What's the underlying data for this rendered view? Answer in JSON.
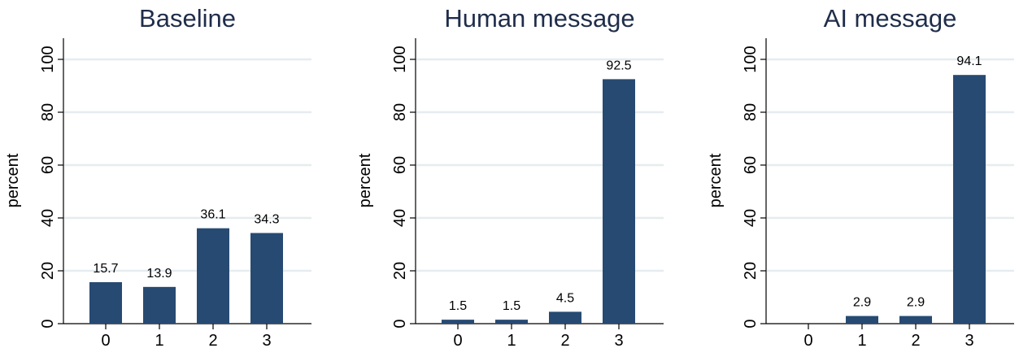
{
  "colors": {
    "bar": "#274A72",
    "grid": "#E6ECEF",
    "axis": "#000000",
    "title": "#1F2D4A",
    "text": "#000000"
  },
  "chart_data": [
    {
      "type": "bar",
      "title": "Baseline",
      "ylabel": "percent",
      "xlabel": "",
      "categories": [
        "0",
        "1",
        "2",
        "3"
      ],
      "values": [
        15.7,
        13.9,
        36.1,
        34.3
      ],
      "data_labels": [
        "15.7",
        "13.9",
        "36.1",
        "34.3"
      ],
      "ylim": [
        0,
        100
      ],
      "yticks": [
        0,
        20,
        40,
        60,
        80,
        100
      ],
      "ytick_labels": [
        "0",
        "20",
        "40",
        "60",
        "80",
        "100"
      ],
      "grid": true,
      "legend": "none"
    },
    {
      "type": "bar",
      "title": "Human message",
      "ylabel": "percent",
      "xlabel": "",
      "categories": [
        "0",
        "1",
        "2",
        "3"
      ],
      "values": [
        1.5,
        1.5,
        4.5,
        92.5
      ],
      "data_labels": [
        "1.5",
        "1.5",
        "4.5",
        "92.5"
      ],
      "ylim": [
        0,
        100
      ],
      "yticks": [
        0,
        20,
        40,
        60,
        80,
        100
      ],
      "ytick_labels": [
        "0",
        "20",
        "40",
        "60",
        "80",
        "100"
      ],
      "grid": true,
      "legend": "none"
    },
    {
      "type": "bar",
      "title": "AI message",
      "ylabel": "percent",
      "xlabel": "",
      "categories": [
        "0",
        "1",
        "2",
        "3"
      ],
      "values": [
        0,
        2.9,
        2.9,
        94.1
      ],
      "data_labels": [
        "",
        "2.9",
        "2.9",
        "94.1"
      ],
      "ylim": [
        0,
        100
      ],
      "yticks": [
        0,
        20,
        40,
        60,
        80,
        100
      ],
      "ytick_labels": [
        "0",
        "20",
        "40",
        "60",
        "80",
        "100"
      ],
      "grid": true,
      "legend": "none"
    }
  ]
}
